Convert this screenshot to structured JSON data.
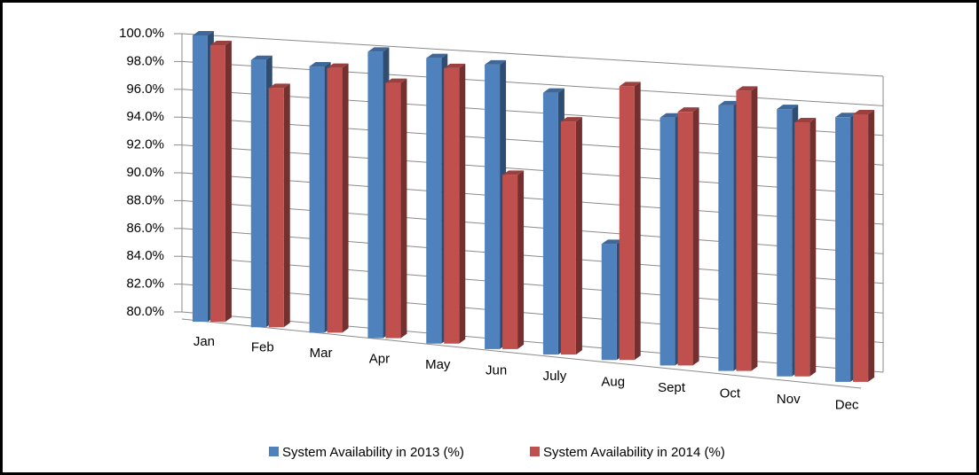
{
  "chart_data": {
    "type": "bar3d",
    "categories": [
      "Jan",
      "Feb",
      "Mar",
      "Apr",
      "May",
      "Jun",
      "July",
      "Aug",
      "Sept",
      "Oct",
      "Nov",
      "Dec"
    ],
    "series": [
      {
        "name": "System Availability in 2013 (%)",
        "color": "#4f81bd",
        "values": [
          100.0,
          98.5,
          98.3,
          99.6,
          99.4,
          99.2,
          97.5,
          87.3,
          96.3,
          97.4,
          97.4,
          97.1
        ]
      },
      {
        "name": "System Availability in 2014 (%)",
        "color": "#c0504d",
        "values": [
          99.3,
          96.5,
          98.2,
          97.4,
          98.7,
          91.5,
          95.5,
          98.2,
          96.7,
          98.4,
          96.5,
          97.3
        ]
      }
    ],
    "ylim": [
      80,
      100
    ],
    "yticks": [
      {
        "value": 80,
        "label": "80.0%"
      },
      {
        "value": 82,
        "label": "82.0%"
      },
      {
        "value": 84,
        "label": "84.0%"
      },
      {
        "value": 86,
        "label": "86.0%"
      },
      {
        "value": 88,
        "label": "88.0%"
      },
      {
        "value": 90,
        "label": "90.0%"
      },
      {
        "value": 92,
        "label": "92.0%"
      },
      {
        "value": 94,
        "label": "94.0%"
      },
      {
        "value": 96,
        "label": "96.0%"
      },
      {
        "value": 98,
        "label": "98.0%"
      },
      {
        "value": 100,
        "label": "100.0%"
      }
    ],
    "grid": true,
    "legend": "bottom"
  }
}
